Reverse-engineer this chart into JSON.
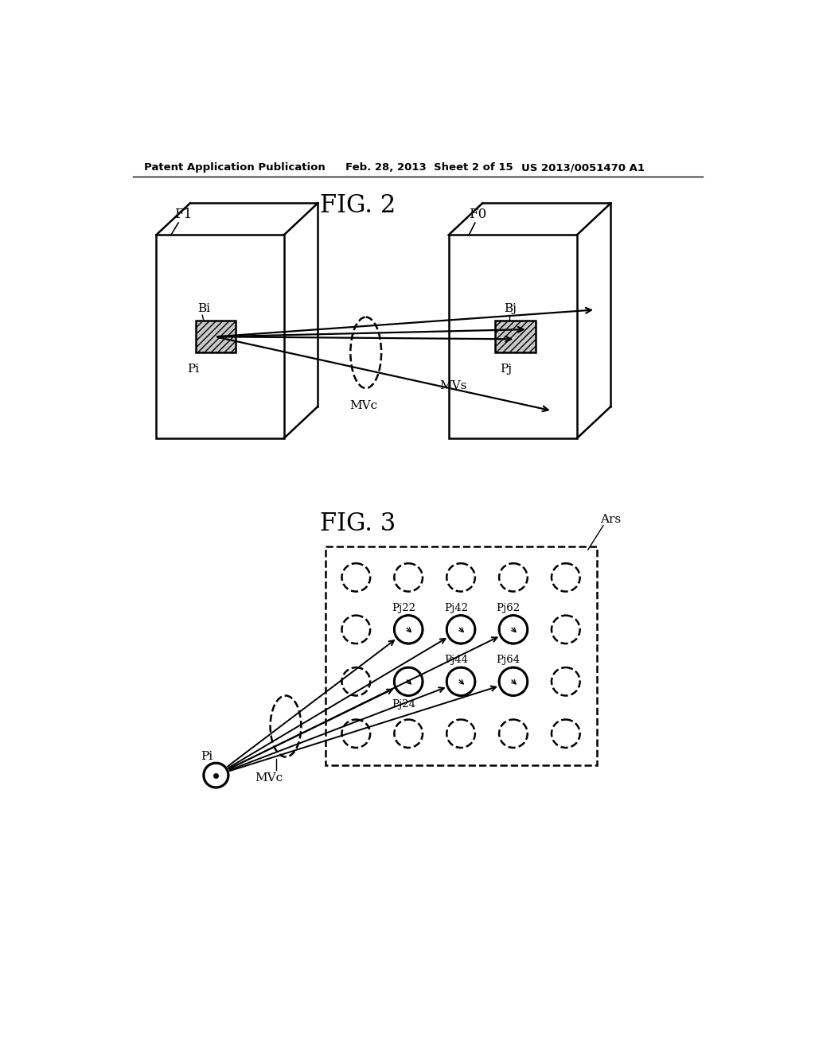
{
  "background_color": "#ffffff",
  "header_text": "Patent Application Publication",
  "header_date": "Feb. 28, 2013  Sheet 2 of 15",
  "header_patent": "US 2013/0051470 A1",
  "fig2_title": "FIG. 2",
  "fig3_title": "FIG. 3",
  "label_F1": "F1",
  "label_F0": "F0",
  "label_Bi": "Bi",
  "label_Bj": "Bj",
  "label_Pi_fig2": "Pi",
  "label_Pj_fig2": "Pj",
  "label_MVs": "MVs",
  "label_MVc_fig2": "MVc",
  "label_Pi_fig3": "Pi",
  "label_MVc_fig3": "MVc",
  "label_Ars": "Ars",
  "grid_labels": [
    "Pj22",
    "Pj42",
    "Pj62",
    "Pj24",
    "Pj44",
    "Pj64"
  ]
}
